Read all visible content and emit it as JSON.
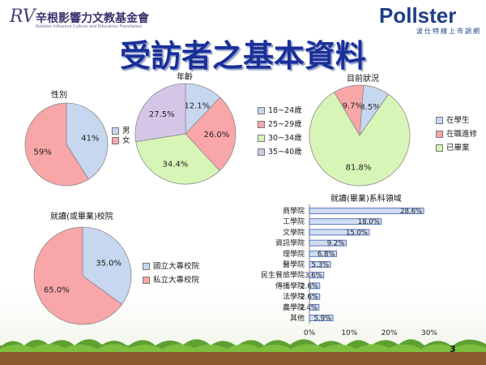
{
  "header": {
    "logo_left_mark": "RV",
    "logo_left_name": "辛根影響力文教基金會",
    "logo_left_sub": "Rubbies Influence Culture and Education Foundation",
    "logo_right_name": "Pollster",
    "logo_right_sub": "波仕特線上市調網",
    "title": "受訪者之基本資料",
    "page_number": "3"
  },
  "colors": {
    "blue": "#c6d7ef",
    "red": "#f9a6a8",
    "green": "#d8f5b8",
    "purple": "#d5c6e8",
    "title": "#1a2f9a",
    "bar": "#cfdcf4",
    "bar_edge": "#3d5fa8"
  },
  "chart_data": [
    {
      "type": "pie",
      "title": "性別",
      "categories": [
        "男",
        "女"
      ],
      "values": [
        41,
        59
      ],
      "labels": [
        "41%",
        "59%"
      ],
      "colors": [
        "#c6d7ef",
        "#f9a6a8"
      ],
      "legend": "right"
    },
    {
      "type": "pie",
      "title": "年齡",
      "categories": [
        "18~24歲",
        "25~29歲",
        "30~34歲",
        "35~40歲"
      ],
      "values": [
        12.1,
        26.0,
        34.4,
        27.5
      ],
      "labels": [
        "12.1%",
        "26.0%",
        "34.4%",
        "27.5%"
      ],
      "colors": [
        "#c6d7ef",
        "#f9a6a8",
        "#d8f5b8",
        "#d5c6e8"
      ],
      "legend": "right"
    },
    {
      "type": "pie",
      "title": "目前狀況",
      "categories": [
        "在學生",
        "在職進修",
        "已畢業"
      ],
      "values": [
        8.5,
        9.7,
        81.8
      ],
      "labels": [
        "8.5%",
        "9.7%",
        "81.8%"
      ],
      "colors": [
        "#c6d7ef",
        "#f9a6a8",
        "#d8f5b8"
      ],
      "legend": "right"
    },
    {
      "type": "pie",
      "title": "就讀(或畢業)校院",
      "categories": [
        "國立大專校院",
        "私立大專校院"
      ],
      "values": [
        35.0,
        65.0
      ],
      "labels": [
        "35.0%",
        "65.0%"
      ],
      "colors": [
        "#c6d7ef",
        "#f9a6a8"
      ],
      "legend": "right"
    },
    {
      "type": "bar",
      "orientation": "horizontal",
      "title": "就讀(畢業)系科領域",
      "categories": [
        "商學院",
        "工學院",
        "文學院",
        "資訊學院",
        "理學院",
        "醫學院",
        "民生餐旅學院",
        "傳播學院",
        "法學院",
        "農學院",
        "其他"
      ],
      "values": [
        28.6,
        18.0,
        15.0,
        9.2,
        6.8,
        5.3,
        3.6,
        2.6,
        2.6,
        2.4,
        5.9
      ],
      "labels": [
        "28.6%",
        "18.0%",
        "15.0%",
        "9.2%",
        "6.8%",
        "5.3%",
        "3.6%",
        "2.6%",
        "2.6%",
        "2.4%",
        "5.9%"
      ],
      "xticks": [
        "0%",
        "10%",
        "20%",
        "30%"
      ],
      "xlim": [
        0,
        30
      ]
    }
  ]
}
